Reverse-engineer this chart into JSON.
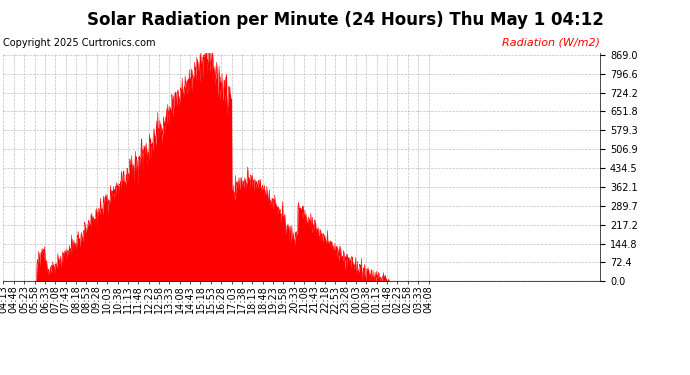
{
  "title": "Solar Radiation per Minute (24 Hours) Thu May 1 04:12",
  "copyright": "Copyright 2025 Curtronics.com",
  "legend_label": "Radiation (W/m2)",
  "y_max": 869.0,
  "y_min": 0.0,
  "ytick_values": [
    0.0,
    72.4,
    144.8,
    217.2,
    289.7,
    362.1,
    434.5,
    506.9,
    579.3,
    651.8,
    724.2,
    796.6,
    869.0
  ],
  "fill_color": "#ff0000",
  "line_color": "#ff0000",
  "dashed_line_color": "#ff0000",
  "grid_color": "#b0b0b0",
  "background_color": "#ffffff",
  "title_fontsize": 12,
  "copyright_fontsize": 7,
  "legend_fontsize": 8,
  "tick_fontsize": 7,
  "num_minutes": 1440,
  "x_tick_interval": 25,
  "x_tick_labels": [
    "04:13",
    "04:48",
    "05:23",
    "05:58",
    "06:33",
    "07:08",
    "07:43",
    "08:18",
    "08:53",
    "09:28",
    "10:03",
    "10:38",
    "11:13",
    "11:48",
    "12:23",
    "12:58",
    "13:33",
    "14:08",
    "14:43",
    "15:18",
    "15:53",
    "16:28",
    "17:03",
    "17:38",
    "18:13",
    "18:48",
    "19:23",
    "19:58",
    "20:33",
    "21:08",
    "21:43",
    "22:18",
    "22:53",
    "23:28",
    "00:03",
    "00:38",
    "01:13",
    "01:48",
    "02:23",
    "02:58",
    "03:33",
    "04:08"
  ],
  "rise_minute": 80,
  "peak_minute": 490,
  "set_minute": 930,
  "peak_value": 869.0
}
